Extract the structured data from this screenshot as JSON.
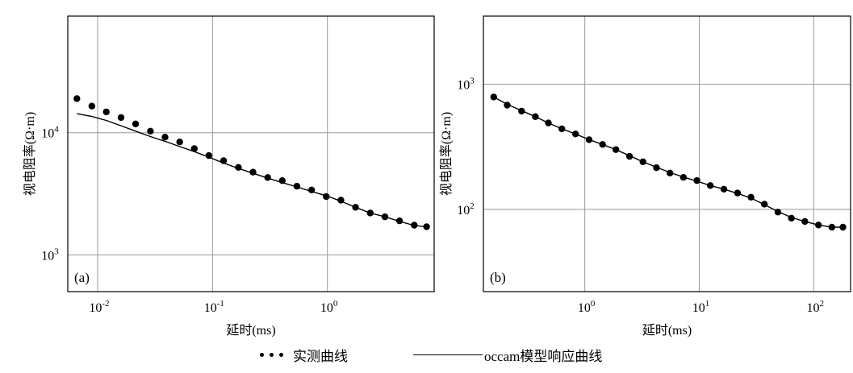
{
  "chart_data": [
    {
      "type": "scatter",
      "panel_label": "(a)",
      "xlabel": "延时(ms)",
      "ylabel": "视电阻率(Ω·m)",
      "xscale": "log",
      "yscale": "log",
      "xlim": [
        0.0055,
        8.5
      ],
      "ylim": [
        500,
        90000
      ],
      "x_ticks": [
        {
          "value": 0.01,
          "base": "10",
          "exp": "-2"
        },
        {
          "value": 0.1,
          "base": "10",
          "exp": "-1"
        },
        {
          "value": 1,
          "base": "10",
          "exp": "0"
        }
      ],
      "y_ticks": [
        {
          "value": 1000,
          "base": "10",
          "exp": "3"
        },
        {
          "value": 10000,
          "base": "10",
          "exp": "4"
        }
      ],
      "grid": true,
      "series": [
        {
          "name": "实测曲线",
          "style": "dots",
          "x": [
            0.0066,
            0.0089,
            0.0119,
            0.016,
            0.0214,
            0.0288,
            0.0386,
            0.0518,
            0.0695,
            0.093,
            0.125,
            0.168,
            0.225,
            0.302,
            0.405,
            0.543,
            0.729,
            0.978,
            1.31,
            1.76,
            2.36,
            3.17,
            4.25,
            5.7,
            7.3
          ],
          "y": [
            19000,
            16500,
            14800,
            13300,
            11800,
            10300,
            9200,
            8400,
            7400,
            6500,
            5900,
            5200,
            4750,
            4300,
            4050,
            3650,
            3400,
            3000,
            2800,
            2450,
            2200,
            2050,
            1900,
            1750,
            1700
          ]
        },
        {
          "name": "occam模型响应曲线",
          "style": "line",
          "x": [
            0.0066,
            0.0089,
            0.0119,
            0.016,
            0.0214,
            0.0288,
            0.0386,
            0.0518,
            0.0695,
            0.093,
            0.125,
            0.168,
            0.225,
            0.302,
            0.405,
            0.543,
            0.729,
            0.978,
            1.31,
            1.76,
            2.36,
            3.17,
            4.25,
            5.7,
            7.3
          ],
          "y": [
            14300,
            13600,
            12600,
            11400,
            10300,
            9300,
            8500,
            7700,
            7000,
            6300,
            5650,
            5100,
            4650,
            4250,
            3900,
            3600,
            3300,
            3050,
            2750,
            2450,
            2200,
            2050,
            1880,
            1740,
            1700
          ]
        }
      ]
    },
    {
      "type": "scatter",
      "panel_label": "(b)",
      "xlabel": "延时(ms)",
      "ylabel": "视电阻率(Ω·m)",
      "xscale": "log",
      "yscale": "log",
      "xlim": [
        0.13,
        210
      ],
      "ylim": [
        22,
        3500
      ],
      "x_ticks": [
        {
          "value": 1,
          "base": "10",
          "exp": "0"
        },
        {
          "value": 10,
          "base": "10",
          "exp": "1"
        },
        {
          "value": 100,
          "base": "10",
          "exp": "2"
        }
      ],
      "y_ticks": [
        {
          "value": 100,
          "base": "10",
          "exp": "2"
        },
        {
          "value": 1000,
          "base": "10",
          "exp": "3"
        }
      ],
      "grid": true,
      "series": [
        {
          "name": "实测曲线",
          "style": "dots",
          "x": [
            0.16,
            0.21,
            0.28,
            0.37,
            0.48,
            0.63,
            0.83,
            1.09,
            1.43,
            1.87,
            2.46,
            3.22,
            4.23,
            5.55,
            7.28,
            9.55,
            12.5,
            16.4,
            21.6,
            28.3,
            37.1,
            48.7,
            63.9,
            83.8,
            110,
            144,
            180
          ],
          "y": [
            790,
            680,
            610,
            550,
            490,
            440,
            400,
            360,
            330,
            300,
            265,
            240,
            215,
            195,
            180,
            170,
            155,
            145,
            135,
            125,
            110,
            95,
            85,
            80,
            75,
            72,
            72
          ]
        },
        {
          "name": "occam模型响应曲线",
          "style": "line",
          "x": [
            0.16,
            0.21,
            0.28,
            0.37,
            0.48,
            0.63,
            0.83,
            1.09,
            1.43,
            1.87,
            2.46,
            3.22,
            4.23,
            5.55,
            7.28,
            9.55,
            12.5,
            16.4,
            21.6,
            28.3,
            37.1,
            48.7,
            63.9,
            83.8,
            110,
            144,
            180
          ],
          "y": [
            790,
            690,
            615,
            550,
            490,
            440,
            400,
            360,
            330,
            300,
            268,
            240,
            217,
            197,
            181,
            168,
            155,
            145,
            134,
            123,
            109,
            96,
            86,
            80,
            75,
            72,
            72
          ]
        }
      ]
    }
  ],
  "legend": {
    "dots_label": "实测曲线",
    "line_label": "occam模型响应曲线"
  }
}
